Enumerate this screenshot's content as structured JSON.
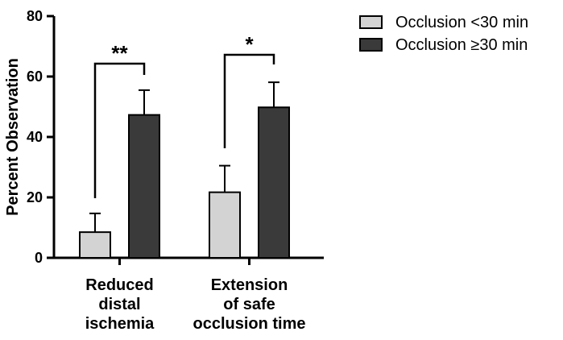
{
  "chart_data": {
    "type": "bar",
    "ylabel": "Percent Observation",
    "ylim": [
      0,
      80
    ],
    "yticks": [
      0,
      20,
      40,
      60,
      80
    ],
    "categories": [
      [
        "Reduced",
        "distal",
        "ischemia"
      ],
      [
        "Extension",
        "of safe",
        "occlusion time"
      ]
    ],
    "series": [
      {
        "name": "Occlusion <30 min",
        "color": "#d3d3d3",
        "values": [
          8.5,
          21.7
        ],
        "errors": [
          6.2,
          8.8
        ]
      },
      {
        "name": "Occlusion ≥30 min",
        "color": "#3a3a3a",
        "values": [
          47.3,
          49.8
        ],
        "errors": [
          8.2,
          8.3
        ]
      }
    ],
    "significance": [
      "**",
      "*"
    ],
    "legend_position": "top-right",
    "grid": false
  }
}
